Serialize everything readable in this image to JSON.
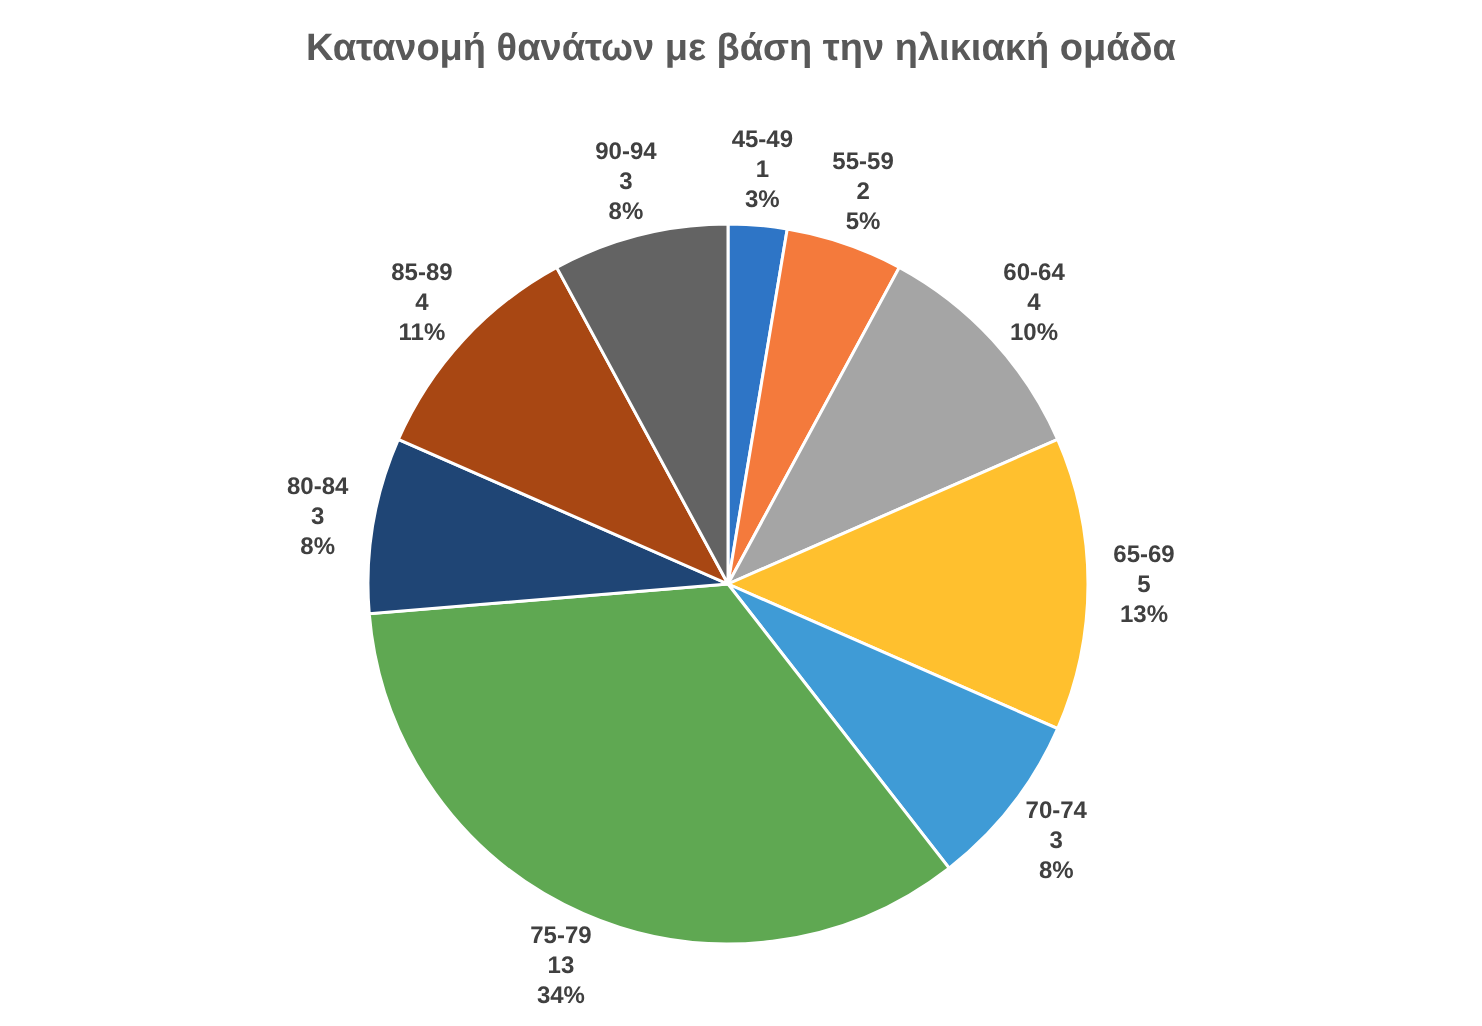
{
  "chart_data": {
    "type": "pie",
    "title": "Κατανομή θανάτων με βάση την ηλικιακή ομάδα",
    "categories": [
      "45-49",
      "55-59",
      "60-64",
      "65-69",
      "70-74",
      "75-79",
      "80-84",
      "85-89",
      "90-94"
    ],
    "values": [
      1,
      2,
      4,
      5,
      3,
      13,
      3,
      4,
      3
    ],
    "colors": [
      "#2e75c6",
      "#f47a3c",
      "#a5a5a5",
      "#ffc02e",
      "#3f9bd6",
      "#5fa852",
      "#1f4575",
      "#a84713",
      "#636363"
    ],
    "value_labels": [
      "1\n3%",
      "2\n5%",
      "4\n10%",
      "5\n13%",
      "3\n8%",
      "13\n34%",
      "3\n8%",
      "4\n11%",
      "3\n8%"
    ]
  }
}
